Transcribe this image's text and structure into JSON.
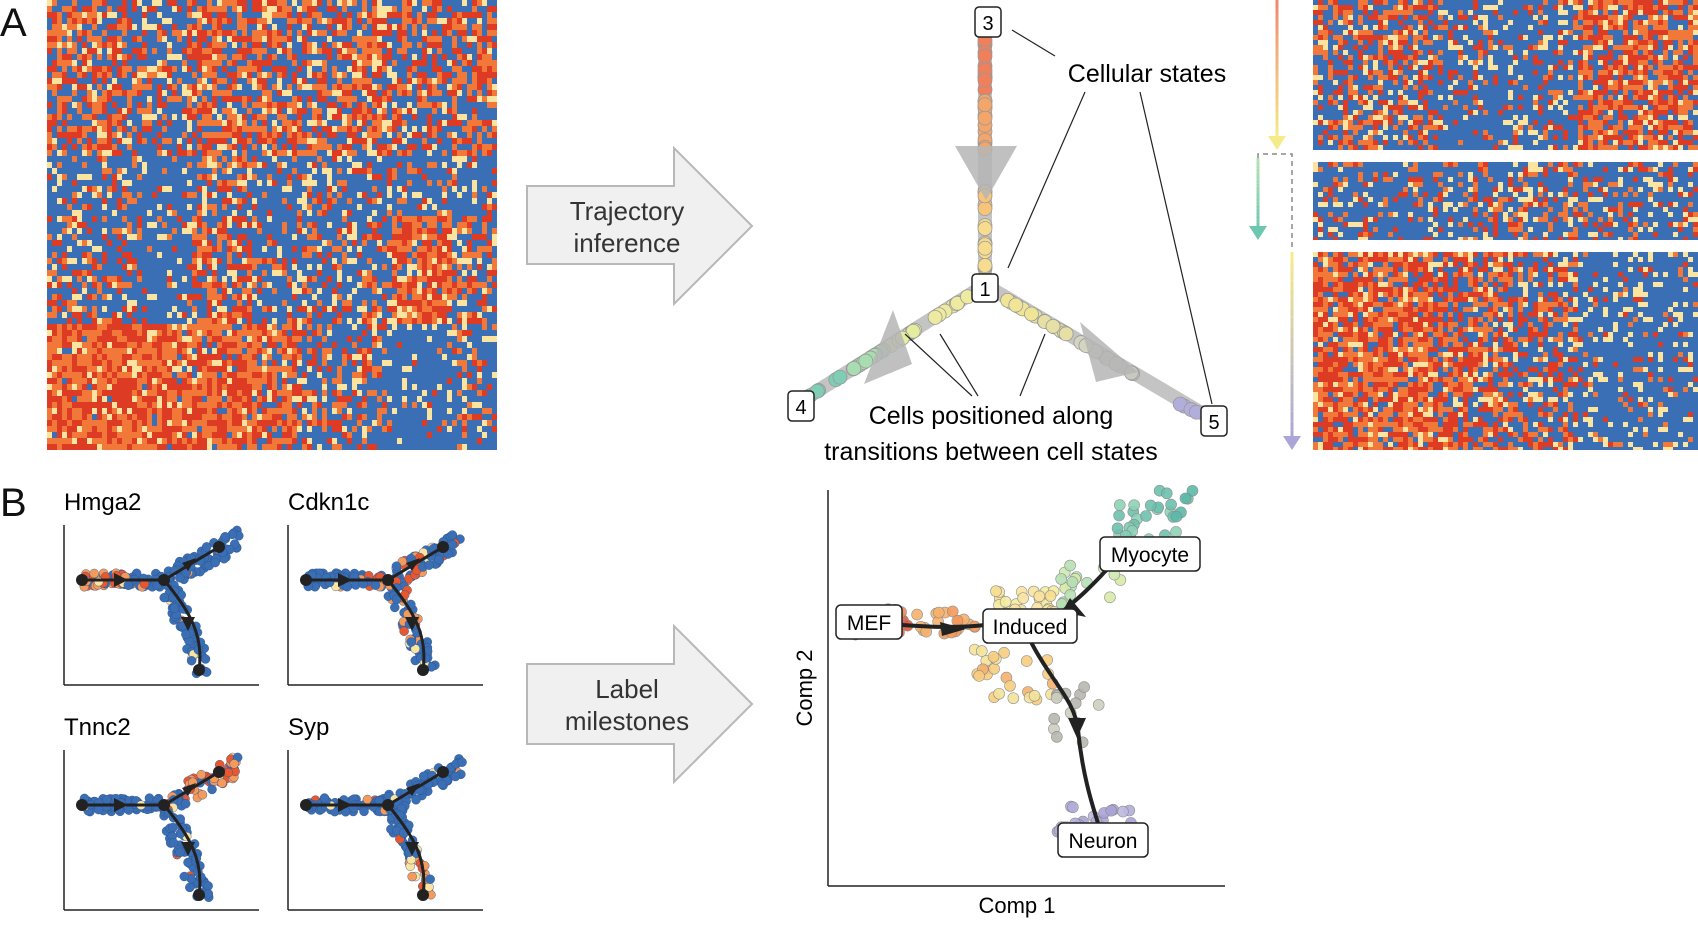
{
  "panels": {
    "a": {
      "letter": "A"
    },
    "b": {
      "letter": "B"
    }
  },
  "arrows": {
    "trajectory": {
      "line1": "Trajectory",
      "line2": "inference"
    },
    "label": {
      "line1": "Label",
      "line2": "milestones"
    }
  },
  "trajectory": {
    "milestones": [
      "1",
      "3",
      "4",
      "5"
    ],
    "annotation_states": "Cellular states",
    "annotation_cells_line1": "Cells positioned along",
    "annotation_cells_line2": "transitions between cell states"
  },
  "genes": [
    "Hmga2",
    "Cdkn1c",
    "Tnnc2",
    "Syp"
  ],
  "scatter": {
    "xlabel": "Comp 1",
    "ylabel": "Comp 2",
    "milestones": [
      "MEF",
      "Induced",
      "Myocyte",
      "Neuron"
    ]
  },
  "colors": {
    "heat_blue": "#3b6fb5",
    "heat_red": "#de3b25",
    "heat_orange": "#f2783a",
    "heat_yellow": "#fbe4a0",
    "arrow_fill": "#f0f0f0",
    "arrow_stroke": "#b8b8b8",
    "trajectory_line": "#c4c4c4"
  }
}
